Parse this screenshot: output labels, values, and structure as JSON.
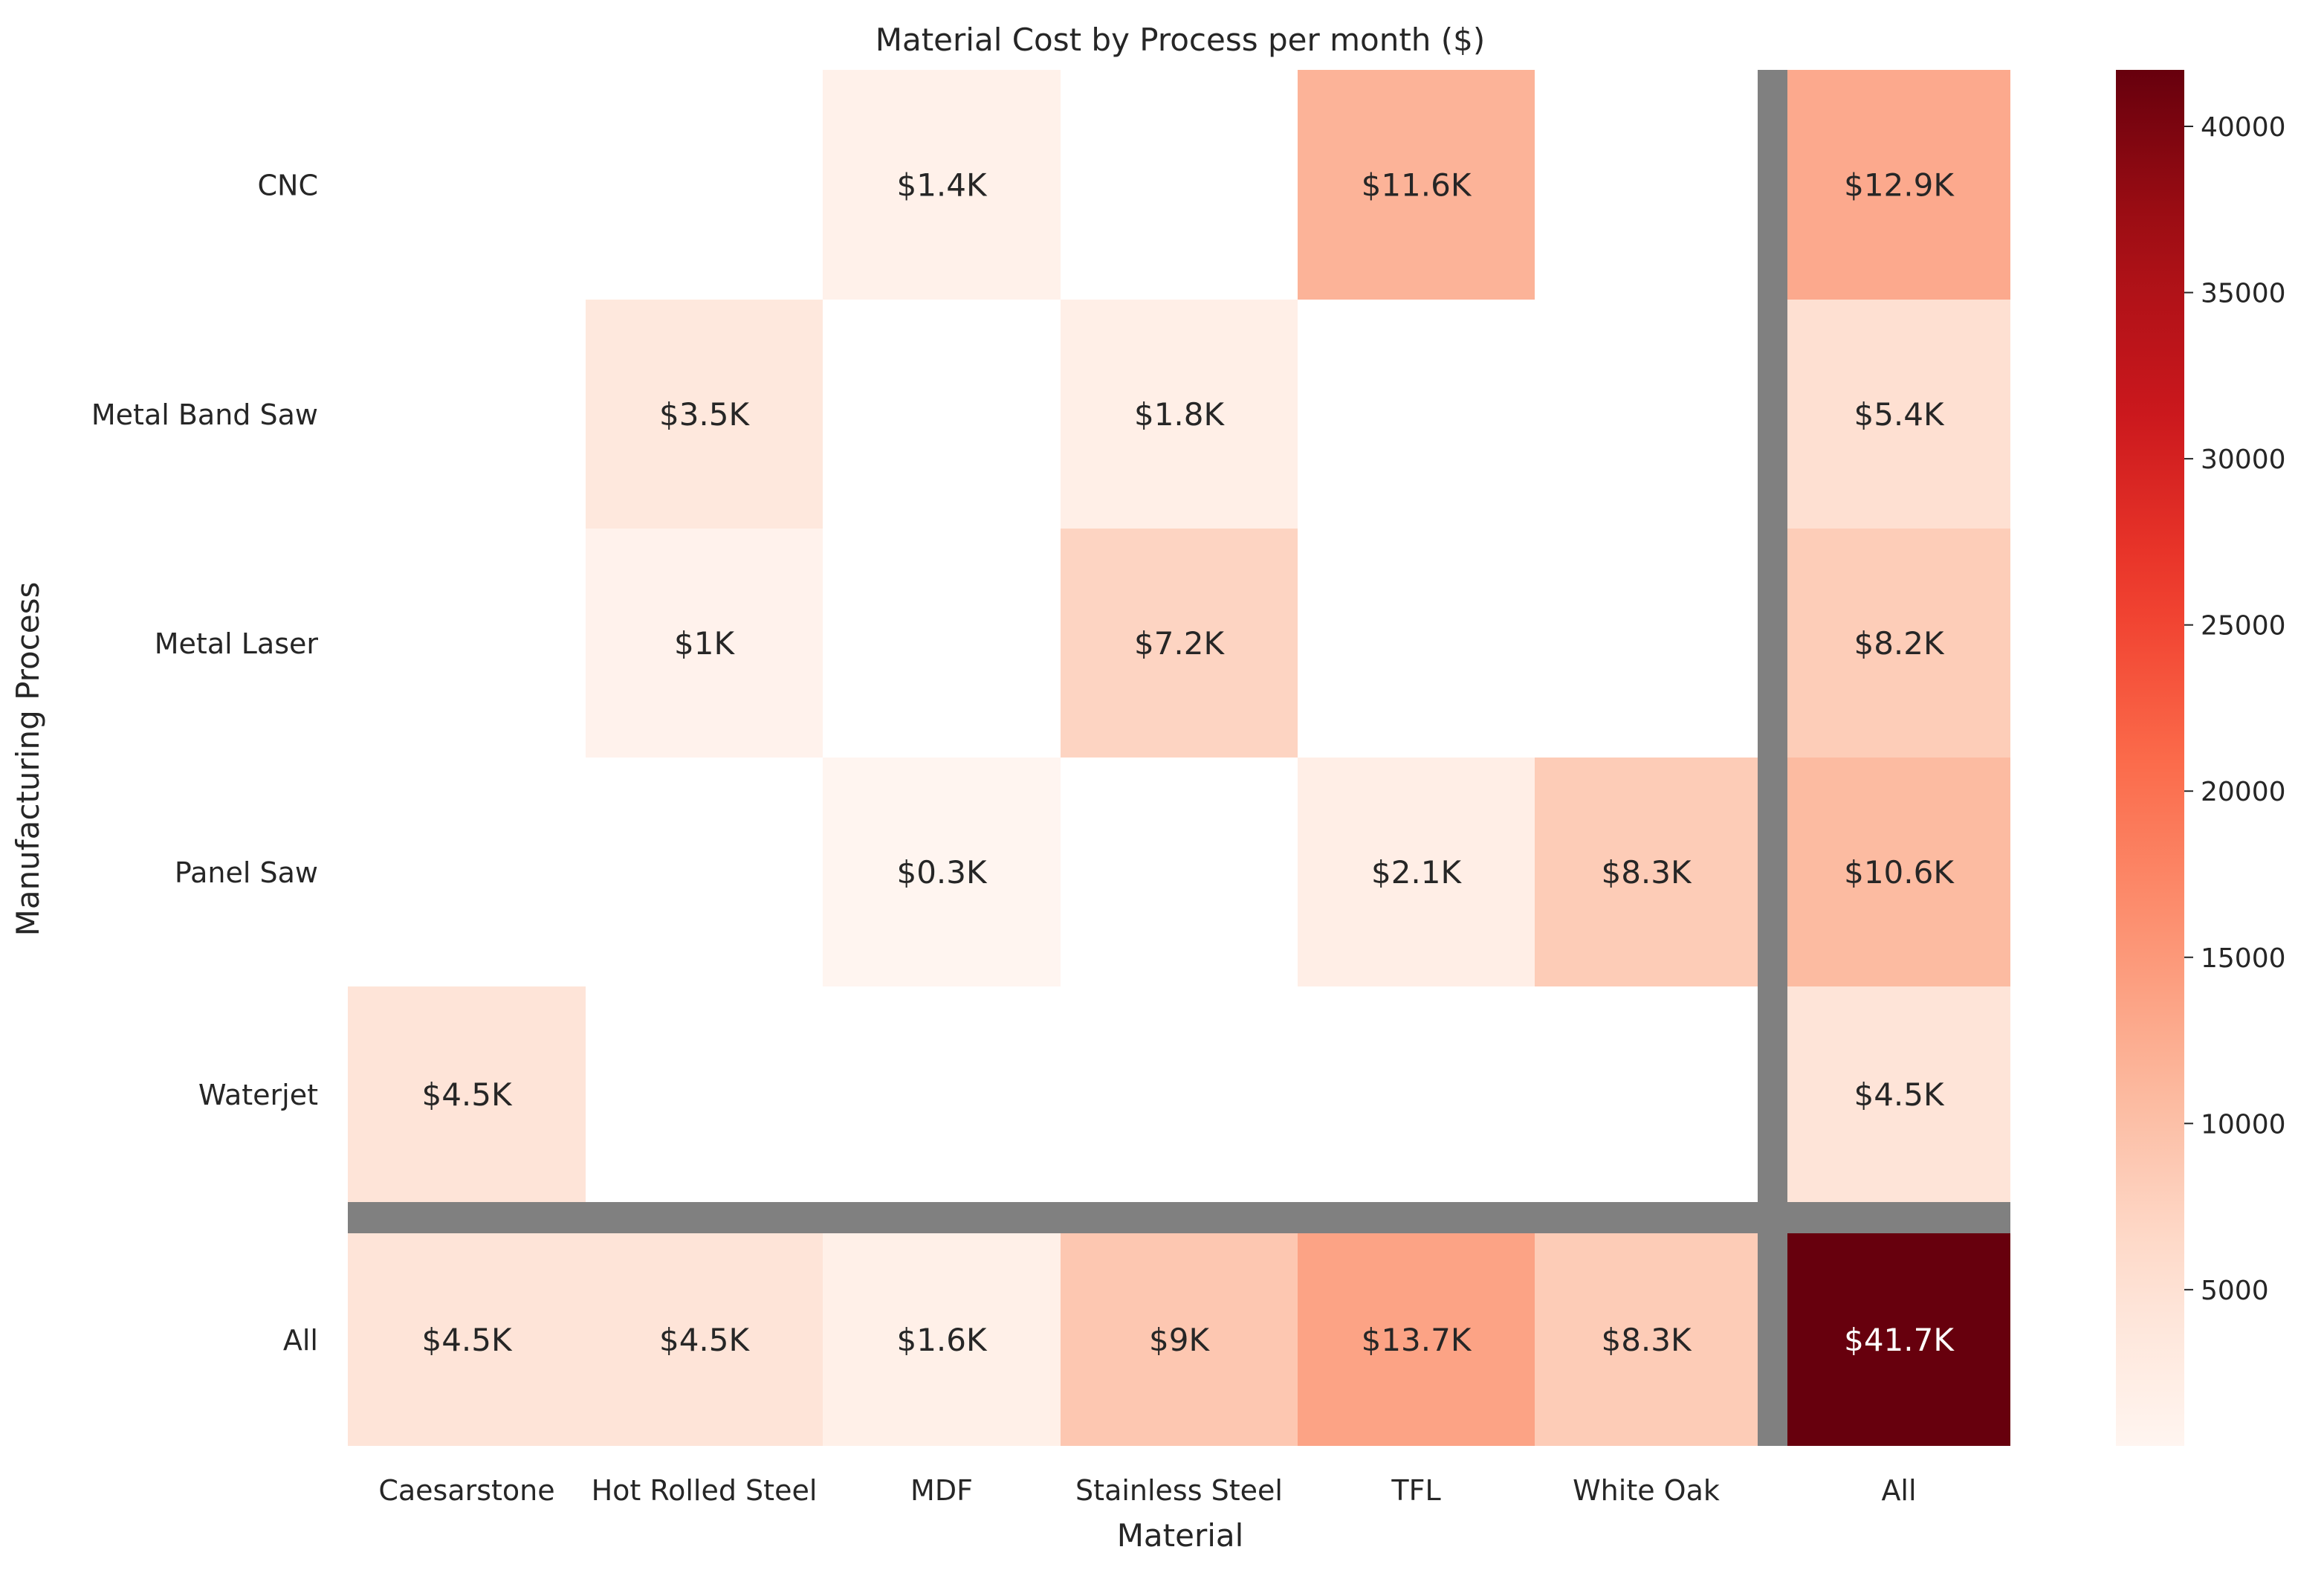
{
  "chart_data": {
    "type": "heatmap",
    "title": "Material Cost by Process per month ($)",
    "xlabel": "Material",
    "ylabel": "Manufacturing Process",
    "columns": [
      "Caesarstone",
      "Hot Rolled Steel",
      "MDF",
      "Stainless Steel",
      "TFL",
      "White Oak",
      "All"
    ],
    "rows": [
      "CNC",
      "Metal Band Saw",
      "Metal Laser",
      "Panel Saw",
      "Waterjet",
      "All"
    ],
    "values": [
      [
        null,
        null,
        1400,
        null,
        11600,
        null,
        12900
      ],
      [
        null,
        3500,
        null,
        1800,
        null,
        null,
        5400
      ],
      [
        null,
        1000,
        null,
        7200,
        null,
        null,
        8200
      ],
      [
        null,
        null,
        300,
        null,
        2100,
        8300,
        10600
      ],
      [
        4500,
        null,
        null,
        null,
        null,
        null,
        4500
      ],
      [
        4500,
        4500,
        1600,
        9000,
        13700,
        8300,
        41700
      ]
    ],
    "labels": [
      [
        "",
        "",
        "$1.4K",
        "",
        "$11.6K",
        "",
        "$12.9K"
      ],
      [
        "",
        "$3.5K",
        "",
        "$1.8K",
        "",
        "",
        "$5.4K"
      ],
      [
        "",
        "$1K",
        "",
        "$7.2K",
        "",
        "",
        "$8.2K"
      ],
      [
        "",
        "",
        "$0.3K",
        "",
        "$2.1K",
        "$8.3K",
        "$10.6K"
      ],
      [
        "$4.5K",
        "",
        "",
        "",
        "",
        "",
        "$4.5K"
      ],
      [
        "$4.5K",
        "$4.5K",
        "$1.6K",
        "$9K",
        "$13.7K",
        "$8.3K",
        "$41.7K"
      ]
    ],
    "colormap": "Reds",
    "color_range": [
      300,
      41700
    ],
    "colorbar_ticks": [
      5000,
      10000,
      15000,
      20000,
      25000,
      30000,
      35000,
      40000
    ],
    "colorbar_tick_labels": [
      "5000",
      "10000",
      "15000",
      "20000",
      "25000",
      "30000",
      "35000",
      "40000"
    ],
    "separator_color": "#808080",
    "missing_color": "#ffffff"
  }
}
